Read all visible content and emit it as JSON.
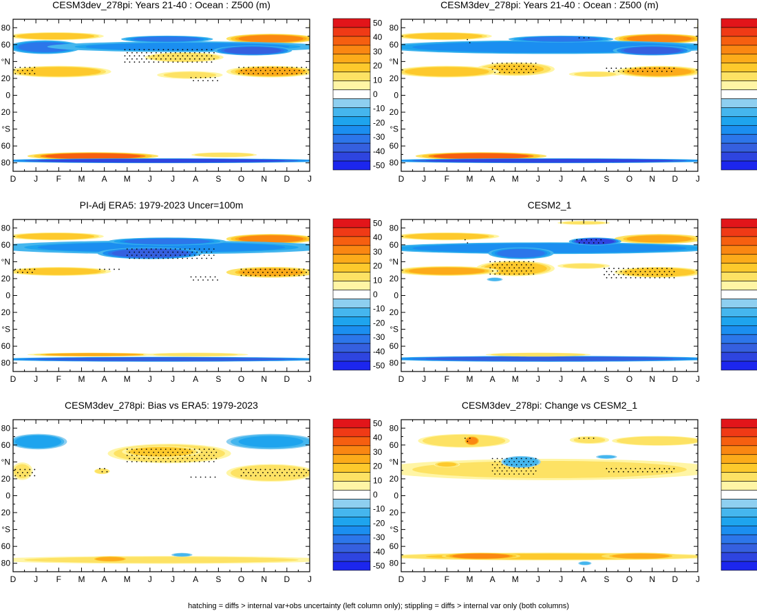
{
  "footnote": "hatching = diffs > internal var+obs uncertainty (left column only); stippling = diffs > internal var only (both columns)",
  "chart_data": {
    "type": "heatmap",
    "x_ticks": [
      "D",
      "J",
      "F",
      "M",
      "A",
      "M",
      "J",
      "J",
      "A",
      "S",
      "O",
      "N",
      "D",
      "J"
    ],
    "y_ticks": [
      "80",
      "60",
      "°N",
      "20",
      "0",
      "20",
      "°S",
      "60",
      "80"
    ],
    "colorbar": {
      "labels": [
        "50",
        "40",
        "30",
        "20",
        "10",
        "0",
        "-10",
        "-20",
        "-30",
        "-40",
        "-50"
      ],
      "colors": [
        "#e2151a",
        "#f03a16",
        "#f65f10",
        "#fa8712",
        "#fcab1a",
        "#fdc92c",
        "#fde264",
        "#fff5a5",
        "#ffffff",
        "#8ecff0",
        "#45b6ee",
        "#1ea4ee",
        "#1b8ef0",
        "#2c76ea",
        "#3560df",
        "#2e45e0",
        "#1c26ee"
      ]
    },
    "panels": [
      {
        "title": "CESM3dev_278pi: Years 21-40 : Ocean : Z500 (m)",
        "blobs": [
          {
            "x": [
              0,
              3.7
            ],
            "y": [
              66,
              74
            ],
            "v": 18
          },
          {
            "x": [
              9.6,
              13
            ],
            "y": [
              62,
              72
            ],
            "v": 30
          },
          {
            "x": [
              13,
              13.5
            ],
            "y": [
              74,
              90
            ],
            "v": 15
          },
          {
            "x": [
              0,
              2.8
            ],
            "y": [
              50,
              64
            ],
            "v": -25
          },
          {
            "x": [
              2.3,
              13
            ],
            "y": [
              52,
              63
            ],
            "v": -22
          },
          {
            "x": [
              5,
              8.5
            ],
            "y": [
              63,
              70
            ],
            "v": -28
          },
          {
            "x": [
              9,
              12
            ],
            "y": [
              48,
              58
            ],
            "v": -35
          },
          {
            "x": [
              6,
              9
            ],
            "y": [
              40,
              50
            ],
            "v": 12
          },
          {
            "x": [
              0,
              4
            ],
            "y": [
              22,
              34
            ],
            "v": 18
          },
          {
            "x": [
              9.6,
              13
            ],
            "y": [
              22,
              34
            ],
            "v": 20
          },
          {
            "x": [
              6.5,
              9
            ],
            "y": [
              20,
              28
            ],
            "v": 8
          },
          {
            "x": [
              1,
              6
            ],
            "y": [
              -68,
              -76
            ],
            "v": 32
          },
          {
            "x": [
              8,
              10.5
            ],
            "y": [
              -68,
              -73
            ],
            "v": 12
          },
          {
            "x": [
              0,
              13
            ],
            "y": [
              -75,
              -80
            ],
            "v": -40
          }
        ],
        "stipple": [
          {
            "x": [
              0.1,
              1.0
            ],
            "y": [
              23,
              33
            ]
          },
          {
            "x": [
              4.9,
              8.9
            ],
            "y": [
              38,
              54
            ]
          },
          {
            "x": [
              9.9,
              12.9
            ],
            "y": [
              23,
              33
            ]
          },
          {
            "x": [
              7.8,
              9.0
            ],
            "y": [
              16,
              21
            ]
          }
        ]
      },
      {
        "title": "CESM3dev_278pi: Years 21-40 : Ocean : Z500 (m)",
        "blobs": [
          {
            "x": [
              0,
              3.7
            ],
            "y": [
              66,
              74
            ],
            "v": 18
          },
          {
            "x": [
              9.6,
              13
            ],
            "y": [
              62,
              72
            ],
            "v": 30
          },
          {
            "x": [
              13,
              13.5
            ],
            "y": [
              74,
              90
            ],
            "v": 15
          },
          {
            "x": [
              0,
              13
            ],
            "y": [
              50,
              64
            ],
            "v": -24
          },
          {
            "x": [
              5,
              9
            ],
            "y": [
              63,
              70
            ],
            "v": -26
          },
          {
            "x": [
              9.5,
              12.5
            ],
            "y": [
              48,
              58
            ],
            "v": -35
          },
          {
            "x": [
              3.5,
              6.5
            ],
            "y": [
              24,
              38
            ],
            "v": 15
          },
          {
            "x": [
              7.5,
              9.5
            ],
            "y": [
              22,
              28
            ],
            "v": 10
          },
          {
            "x": [
              0,
              4
            ],
            "y": [
              22,
              34
            ],
            "v": 18
          },
          {
            "x": [
              9.6,
              13
            ],
            "y": [
              22,
              34
            ],
            "v": 20
          },
          {
            "x": [
              1,
              6
            ],
            "y": [
              -68,
              -76
            ],
            "v": 32
          },
          {
            "x": [
              0,
              13
            ],
            "y": [
              -75,
              -80
            ],
            "v": -40
          }
        ],
        "stipple": [
          {
            "x": [
              4.0,
              6.0
            ],
            "y": [
              25,
              38
            ]
          },
          {
            "x": [
              9.0,
              12.0
            ],
            "y": [
              28,
              32
            ]
          },
          {
            "x": [
              2.9,
              3.1
            ],
            "y": [
              62,
              66
            ]
          },
          {
            "x": [
              7.8,
              8.4
            ],
            "y": [
              66,
              68
            ]
          }
        ]
      },
      {
        "title": "PI-Adj ERA5: 1979-2023 Uncer=100m",
        "blobs": [
          {
            "x": [
              0,
              3.7
            ],
            "y": [
              66,
              74
            ],
            "v": 18
          },
          {
            "x": [
              9.6,
              13
            ],
            "y": [
              62,
              72
            ],
            "v": 30
          },
          {
            "x": [
              0,
              13
            ],
            "y": [
              50,
              64
            ],
            "v": -22
          },
          {
            "x": [
              4,
              8
            ],
            "y": [
              44,
              56
            ],
            "v": -35
          },
          {
            "x": [
              4.5,
              9
            ],
            "y": [
              60,
              68
            ],
            "v": -26
          },
          {
            "x": [
              0,
              4
            ],
            "y": [
              24,
              33
            ],
            "v": 18
          },
          {
            "x": [
              9.6,
              13
            ],
            "y": [
              22,
              33
            ],
            "v": 22
          },
          {
            "x": [
              1,
              6
            ],
            "y": [
              -68,
              -72
            ],
            "v": 20
          },
          {
            "x": [
              6,
              10
            ],
            "y": [
              -68,
              -72
            ],
            "v": 10
          },
          {
            "x": [
              0,
              13
            ],
            "y": [
              -73,
              -78
            ],
            "v": -35
          }
        ],
        "stipple": [
          {
            "x": [
              5.0,
              8.9
            ],
            "y": [
              41,
              55
            ]
          },
          {
            "x": [
              0.1,
              1.0
            ],
            "y": [
              27,
              31
            ]
          },
          {
            "x": [
              3.8,
              4.8
            ],
            "y": [
              29,
              31
            ]
          },
          {
            "x": [
              10.0,
              12.9
            ],
            "y": [
              22,
              31
            ]
          },
          {
            "x": [
              7.8,
              9.0
            ],
            "y": [
              18,
              22
            ]
          }
        ]
      },
      {
        "title": "CESM2_1",
        "blobs": [
          {
            "x": [
              0,
              4
            ],
            "y": [
              66,
              74
            ],
            "v": 18
          },
          {
            "x": [
              9.6,
              13
            ],
            "y": [
              62,
              72
            ],
            "v": 22
          },
          {
            "x": [
              7,
              9
            ],
            "y": [
              84,
              88
            ],
            "v": 8
          },
          {
            "x": [
              0,
              13
            ],
            "y": [
              50,
              62
            ],
            "v": -24
          },
          {
            "x": [
              7.5,
              9.5
            ],
            "y": [
              60,
              68
            ],
            "v": -40
          },
          {
            "x": [
              4,
              6.5
            ],
            "y": [
              44,
              56
            ],
            "v": -26
          },
          {
            "x": [
              3.5,
              6.5
            ],
            "y": [
              24,
              40
            ],
            "v": 16
          },
          {
            "x": [
              0,
              4
            ],
            "y": [
              24,
              34
            ],
            "v": 20
          },
          {
            "x": [
              9.6,
              13
            ],
            "y": [
              22,
              33
            ],
            "v": 18
          },
          {
            "x": [
              7,
              9
            ],
            "y": [
              32,
              38
            ],
            "v": 8
          },
          {
            "x": [
              3.8,
              4.4
            ],
            "y": [
              17,
              21
            ],
            "v": -10
          },
          {
            "x": [
              0,
              13
            ],
            "y": [
              -72,
              -78
            ],
            "v": -35
          },
          {
            "x": [
              4,
              8
            ],
            "y": [
              -68,
              -72
            ],
            "v": 12
          }
        ],
        "stipple": [
          {
            "x": [
              3.9,
              5.9
            ],
            "y": [
              24,
              40
            ]
          },
          {
            "x": [
              8.9,
              12.0
            ],
            "y": [
              20,
              32
            ]
          },
          {
            "x": [
              7.7,
              8.9
            ],
            "y": [
              62,
              66
            ]
          },
          {
            "x": [
              2.8,
              3.0
            ],
            "y": [
              62,
              66
            ]
          }
        ]
      },
      {
        "title": "CESM3dev_278pi: Bias vs ERA5: 1979-2023",
        "blobs": [
          {
            "x": [
              0,
              2.2
            ],
            "y": [
              56,
              72
            ],
            "v": -18
          },
          {
            "x": [
              9.6,
              13
            ],
            "y": [
              56,
              72
            ],
            "v": -15
          },
          {
            "x": [
              4.5,
              9.2
            ],
            "y": [
              40,
              60
            ],
            "v": 12
          },
          {
            "x": [
              5,
              8
            ],
            "y": [
              46,
              58
            ],
            "v": 18
          },
          {
            "x": [
              0,
              0.8
            ],
            "y": [
              20,
              38
            ],
            "v": 10
          },
          {
            "x": [
              9.6,
              13
            ],
            "y": [
              18,
              36
            ],
            "v": 12
          },
          {
            "x": [
              3.6,
              4.2
            ],
            "y": [
              26,
              32
            ],
            "v": 12
          },
          {
            "x": [
              0,
              13
            ],
            "y": [
              -72,
              -80
            ],
            "v": 10
          },
          {
            "x": [
              3.5,
              5
            ],
            "y": [
              -72,
              -78
            ],
            "v": 22
          },
          {
            "x": [
              7,
              7.8
            ],
            "y": [
              -68,
              -72
            ],
            "v": -10
          }
        ],
        "stipple": [
          {
            "x": [
              5.0,
              9.0
            ],
            "y": [
              40,
              55
            ]
          },
          {
            "x": [
              0.1,
              1.0
            ],
            "y": [
              22,
              31
            ]
          },
          {
            "x": [
              10.0,
              12.9
            ],
            "y": [
              22,
              31
            ]
          },
          {
            "x": [
              7.8,
              9.0
            ],
            "y": [
              20,
              22
            ]
          },
          {
            "x": [
              3.8,
              4.2
            ],
            "y": [
              26,
              32
            ]
          }
        ]
      },
      {
        "title": "CESM3dev_278pi: Change vs CESM2_1",
        "blobs": [
          {
            "x": [
              1,
              4.5
            ],
            "y": [
              58,
              72
            ],
            "v": 12
          },
          {
            "x": [
              2.8,
              3.4
            ],
            "y": [
              60,
              70
            ],
            "v": 30
          },
          {
            "x": [
              7.5,
              9
            ],
            "y": [
              62,
              70
            ],
            "v": 8
          },
          {
            "x": [
              9.5,
              13
            ],
            "y": [
              60,
              70
            ],
            "v": 12
          },
          {
            "x": [
              0,
              13
            ],
            "y": [
              20,
              42
            ],
            "v": 10
          },
          {
            "x": [
              1.5,
              2.5
            ],
            "y": [
              34,
              40
            ],
            "v": 15
          },
          {
            "x": [
              4.5,
              6
            ],
            "y": [
              34,
              46
            ],
            "v": -12
          },
          {
            "x": [
              8.6,
              9.4
            ],
            "y": [
              44,
              48
            ],
            "v": -10
          },
          {
            "x": [
              0,
              13
            ],
            "y": [
              -68,
              -76
            ],
            "v": 15
          },
          {
            "x": [
              2,
              5
            ],
            "y": [
              -68,
              -75
            ],
            "v": 28
          },
          {
            "x": [
              9,
              12
            ],
            "y": [
              -68,
              -75
            ],
            "v": 22
          },
          {
            "x": [
              7.8,
              8.3
            ],
            "y": [
              -78,
              -82
            ],
            "v": -10
          }
        ],
        "stipple": [
          {
            "x": [
              4.0,
              5.9
            ],
            "y": [
              24,
              44
            ]
          },
          {
            "x": [
              9.0,
              12.0
            ],
            "y": [
              28,
              32
            ]
          },
          {
            "x": [
              2.8,
              3.1
            ],
            "y": [
              62,
              68
            ]
          },
          {
            "x": [
              7.8,
              8.5
            ],
            "y": [
              66,
              68
            ]
          }
        ]
      }
    ]
  }
}
